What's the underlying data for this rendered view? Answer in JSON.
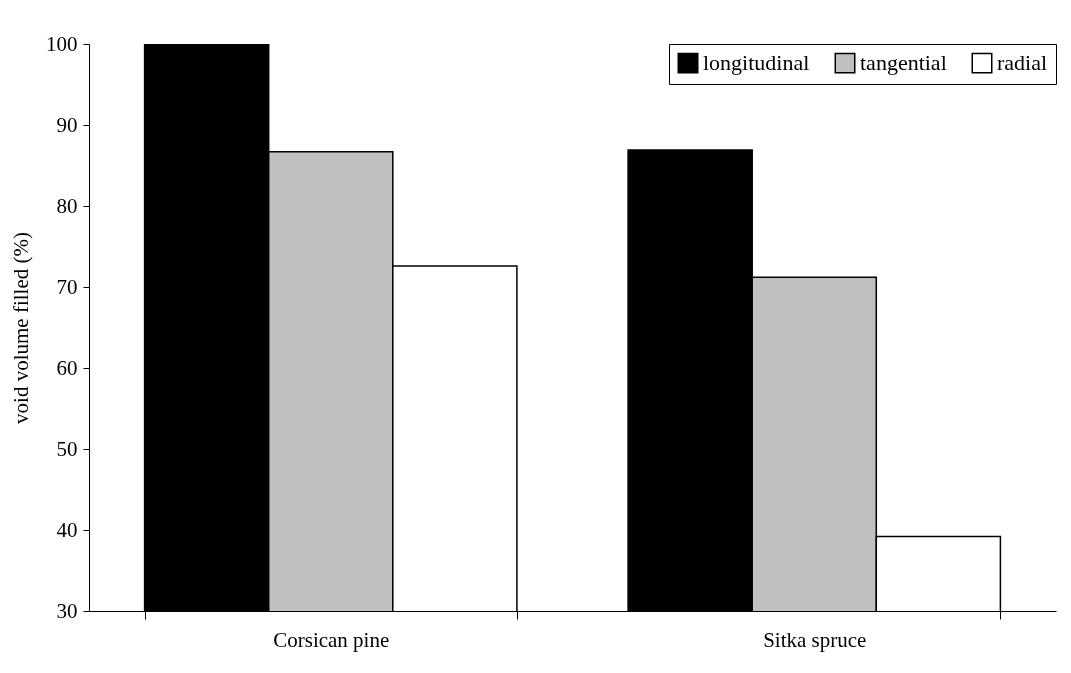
{
  "chart_data": {
    "type": "bar",
    "ylabel": "void volume filled (%)",
    "categories": [
      "Corsican pine",
      "Sitka spruce"
    ],
    "series": [
      {
        "name": "longitudinal",
        "color": "#000000",
        "values": [
          100,
          86.9
        ]
      },
      {
        "name": "tangential",
        "color": "#c0c0c0",
        "values": [
          86.7,
          71.2
        ]
      },
      {
        "name": "radial",
        "color": "#ffffff",
        "values": [
          72.6,
          39.2
        ]
      }
    ],
    "ylim": [
      30,
      100
    ],
    "yticks": [
      30,
      40,
      50,
      60,
      70,
      80,
      90,
      100
    ],
    "legend": "top right"
  }
}
